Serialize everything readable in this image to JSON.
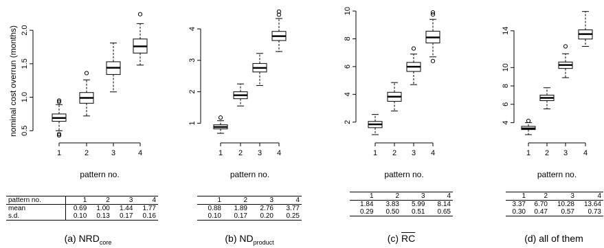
{
  "figure": {
    "ylabel": "nominal cost overrun (months)",
    "xlabel": "pattern no."
  },
  "chart_data": [
    {
      "type": "box",
      "categories": [
        "1",
        "2",
        "3",
        "4"
      ],
      "xlabel": "pattern no.",
      "ylabel": "nominal cost overrun (months)",
      "ylim": [
        0.4,
        2.35
      ],
      "yticks": [
        "0.5",
        "1.0",
        "1.5",
        "2.0"
      ],
      "boxes": [
        {
          "min": 0.5,
          "q1": 0.64,
          "median": 0.69,
          "q3": 0.75,
          "max": 0.89,
          "outliers": [
            0.43,
            0.45,
            0.93,
            0.95
          ]
        },
        {
          "min": 0.72,
          "q1": 0.91,
          "median": 0.99,
          "q3": 1.07,
          "max": 1.26,
          "outliers": [
            1.36
          ]
        },
        {
          "min": 1.08,
          "q1": 1.34,
          "median": 1.44,
          "q3": 1.53,
          "max": 1.81,
          "outliers": []
        },
        {
          "min": 1.48,
          "q1": 1.66,
          "median": 1.76,
          "q3": 1.87,
          "max": 2.1,
          "outliers": [
            2.24
          ]
        }
      ],
      "caption_main": "(a) NRD",
      "caption_sub": "core",
      "table": {
        "header_label": "pattern no.",
        "columns": [
          "1",
          "2",
          "3",
          "4"
        ],
        "rows": [
          {
            "label": "mean",
            "values": [
              "0.69",
              "1.00",
              "1.44",
              "1.77"
            ]
          },
          {
            "label": "s.d.",
            "values": [
              "0.10",
              "0.13",
              "0.17",
              "0.16"
            ]
          }
        ]
      }
    },
    {
      "type": "box",
      "categories": [
        "1",
        "2",
        "3",
        "4"
      ],
      "xlabel": "pattern no.",
      "ylim": [
        0.55,
        4.7
      ],
      "yticks": [
        "1",
        "2",
        "3",
        "4"
      ],
      "boxes": [
        {
          "min": 0.68,
          "q1": 0.82,
          "median": 0.88,
          "q3": 0.95,
          "max": 1.08,
          "outliers": [
            1.18
          ]
        },
        {
          "min": 1.55,
          "q1": 1.78,
          "median": 1.89,
          "q3": 2.0,
          "max": 2.25,
          "outliers": []
        },
        {
          "min": 2.2,
          "q1": 2.63,
          "median": 2.76,
          "q3": 2.9,
          "max": 3.22,
          "outliers": []
        },
        {
          "min": 3.28,
          "q1": 3.63,
          "median": 3.77,
          "q3": 3.92,
          "max": 4.33,
          "outliers": [
            4.45,
            4.55
          ]
        }
      ],
      "caption_main": "(b) ND",
      "caption_sub": "product",
      "table": {
        "columns": [
          "1",
          "2",
          "3",
          "4"
        ],
        "rows": [
          {
            "label": "",
            "values": [
              "0.88",
              "1.89",
              "2.76",
              "3.77"
            ]
          },
          {
            "label": "",
            "values": [
              "0.10",
              "0.17",
              "0.20",
              "0.25"
            ]
          }
        ]
      }
    },
    {
      "type": "box",
      "categories": [
        "1",
        "2",
        "3",
        "4"
      ],
      "xlabel": "pattern no.",
      "ylim": [
        0.9,
        10.3
      ],
      "yticks": [
        "2",
        "4",
        "6",
        "8",
        "10"
      ],
      "boxes": [
        {
          "min": 1.1,
          "q1": 1.6,
          "median": 1.84,
          "q3": 2.05,
          "max": 2.55,
          "outliers": []
        },
        {
          "min": 2.8,
          "q1": 3.5,
          "median": 3.83,
          "q3": 4.15,
          "max": 4.85,
          "outliers": []
        },
        {
          "min": 4.7,
          "q1": 5.65,
          "median": 5.99,
          "q3": 6.3,
          "max": 6.9,
          "outliers": [
            7.3
          ]
        },
        {
          "min": 6.7,
          "q1": 7.7,
          "median": 8.1,
          "q3": 8.55,
          "max": 9.4,
          "outliers": [
            6.4,
            9.75,
            9.9
          ]
        }
      ],
      "caption_main": "(c) ",
      "caption_ovl": "RC",
      "table": {
        "columns": [
          "1",
          "2",
          "3",
          "4"
        ],
        "rows": [
          {
            "label": "",
            "values": [
              "1.84",
              "3.83",
              "5.99",
              "8.14"
            ]
          },
          {
            "label": "",
            "values": [
              "0.29",
              "0.50",
              "0.51",
              "0.65"
            ]
          }
        ]
      }
    },
    {
      "type": "box",
      "categories": [
        "1",
        "2",
        "3",
        "4"
      ],
      "xlabel": "pattern no.",
      "ylim": [
        2.4,
        16.6
      ],
      "yticks": [
        "4",
        "6",
        "8",
        "10",
        "14"
      ],
      "boxes": [
        {
          "min": 2.7,
          "q1": 3.25,
          "median": 3.37,
          "q3": 3.6,
          "max": 4.0,
          "outliers": [
            4.2
          ]
        },
        {
          "min": 5.5,
          "q1": 6.4,
          "median": 6.7,
          "q3": 7.0,
          "max": 7.8,
          "outliers": []
        },
        {
          "min": 8.9,
          "q1": 9.9,
          "median": 10.28,
          "q3": 10.6,
          "max": 11.5,
          "outliers": [
            12.3
          ]
        },
        {
          "min": 12.3,
          "q1": 13.1,
          "median": 13.64,
          "q3": 14.1,
          "max": 16.1,
          "outliers": []
        }
      ],
      "caption_main": "(d) all of them",
      "table": {
        "columns": [
          "1",
          "2",
          "3",
          "4"
        ],
        "rows": [
          {
            "label": "",
            "values": [
              "3.37",
              "6.70",
              "10.28",
              "13.64"
            ]
          },
          {
            "label": "",
            "values": [
              "0.30",
              "0.47",
              "0.57",
              "0.73"
            ]
          }
        ]
      }
    }
  ]
}
